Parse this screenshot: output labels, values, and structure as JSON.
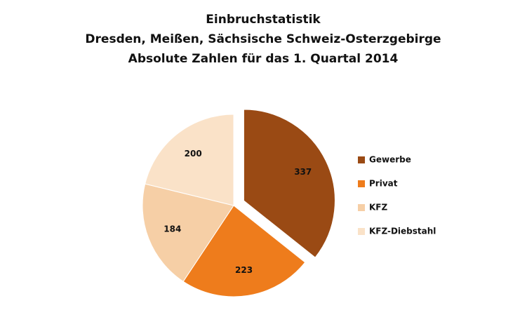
{
  "chart_data": {
    "type": "pie",
    "title_lines": [
      "Einbruchstatistik",
      "Dresden, Meißen, Sächsische Schweiz-Osterzgebirge",
      "Absolute Zahlen für das 1. Quartal 2014"
    ],
    "categories": [
      "Gewerbe",
      "Privat",
      "KFZ",
      "KFZ-Diebstahl"
    ],
    "values": [
      337,
      223,
      184,
      200
    ],
    "colors": [
      "#9a4a14",
      "#ee7c1c",
      "#f6cfa6",
      "#fae2c8"
    ],
    "explode": [
      true,
      false,
      false,
      false
    ],
    "legend": "right"
  }
}
